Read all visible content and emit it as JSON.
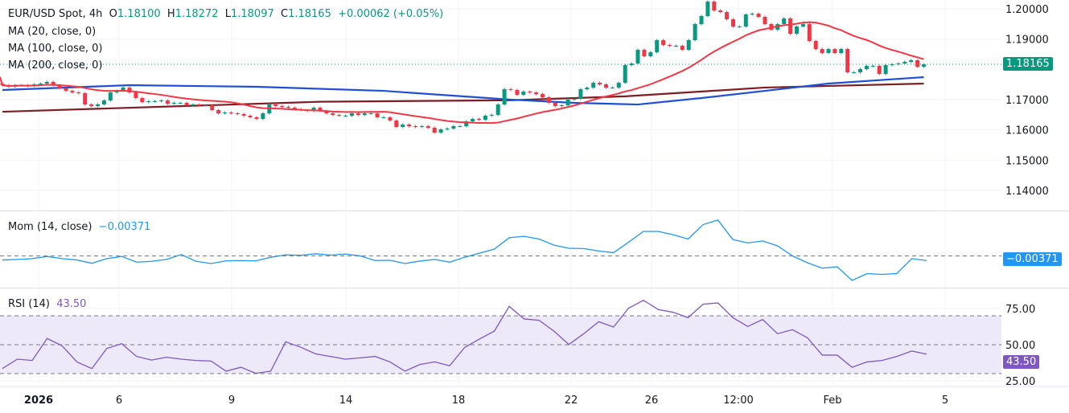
{
  "header": {
    "symbol": "EUR/USD Spot, 4h",
    "o_label": "O",
    "o": "1.18100",
    "h_label": "H",
    "h": "1.18272",
    "l_label": "L",
    "l": "1.18097",
    "c_label": "C",
    "c": "1.18165",
    "change": "+0.00062 (+0.05%)"
  },
  "indicators": {
    "ma20": "MA (20, close, 0)",
    "ma100": "MA (100, close, 0)",
    "ma200": "MA (200, close, 0)",
    "mom_title": "Mom (14, close)",
    "mom_value": "−0.00371",
    "rsi_title": "RSI (14)",
    "rsi_value": "43.50"
  },
  "price_tag": "1.18165",
  "mom_tag": "−0.00371",
  "rsi_tag": "43.50",
  "colors": {
    "up": "#089981",
    "down": "#f23645",
    "ma20": "#f23645",
    "ma100": "#1e4fd6",
    "ma200": "#7f1d22",
    "mom": "#2196f3",
    "rsi": "#7e57c2",
    "rsi_band": "#ede9f8"
  },
  "chart_data": [
    {
      "type": "candlestick",
      "title": "EUR/USD Spot, 4h",
      "ylim": [
        1.1325,
        1.2029
      ],
      "y_ticks": [
        "1.20000",
        "1.19000",
        "1.17000",
        "1.16000",
        "1.15000",
        "1.14000"
      ],
      "x_ticks": [
        "2026",
        "6",
        "9",
        "14",
        "18",
        "22",
        "26",
        "12:00",
        "Feb",
        "5"
      ],
      "grid": true,
      "closes": [
        1.17478,
        1.17425,
        1.17478,
        1.17478,
        1.17451,
        1.17504,
        1.17531,
        1.17584,
        1.17478,
        1.17372,
        1.17292,
        1.17239,
        1.17212,
        1.16841,
        1.16787,
        1.16841,
        1.16973,
        1.17239,
        1.17292,
        1.17398,
        1.17239,
        1.17053,
        1.1692,
        1.16947,
        1.16947,
        1.16973,
        1.16867,
        1.16894,
        1.16894,
        1.16814,
        1.16841,
        1.16814,
        1.16814,
        1.16655,
        1.16548,
        1.16575,
        1.16548,
        1.16522,
        1.16469,
        1.16416,
        1.16363,
        1.16548,
        1.16841,
        1.16787,
        1.16761,
        1.16734,
        1.16681,
        1.16655,
        1.16628,
        1.16734,
        1.16628,
        1.16548,
        1.16495,
        1.16469,
        1.16469,
        1.16548,
        1.16495,
        1.16548,
        1.16548,
        1.16416,
        1.16416,
        1.1631,
        1.16097,
        1.16177,
        1.16124,
        1.16097,
        1.16124,
        1.16071,
        1.15911,
        1.16017,
        1.16044,
        1.16124,
        1.16124,
        1.16283,
        1.16363,
        1.16336,
        1.16469,
        1.16495,
        1.16841,
        1.17345,
        1.17318,
        1.17159,
        1.17265,
        1.17239,
        1.17186,
        1.1708,
        1.16894,
        1.16787,
        1.16814,
        1.17,
        1.17026,
        1.17345,
        1.17398,
        1.17557,
        1.17504,
        1.17398,
        1.17398,
        1.17557,
        1.18141,
        1.18195,
        1.18646,
        1.18434,
        1.18566,
        1.18965,
        1.18805,
        1.18779,
        1.18779,
        1.18646,
        1.18965,
        1.19496,
        1.19761,
        1.20239,
        1.19947,
        1.19894,
        1.19655,
        1.19416,
        1.19416,
        1.19814,
        1.19841,
        1.19734,
        1.19496,
        1.1931,
        1.19496,
        1.19681,
        1.19177,
        1.19416,
        1.19496,
        1.18938,
        1.18672,
        1.1854,
        1.18672,
        1.1854,
        1.18672,
        1.17903,
        1.17903,
        1.18009,
        1.18115,
        1.18115,
        1.17849,
        1.18141,
        1.18168,
        1.18195,
        1.18248,
        1.18301,
        1.18088,
        1.18165
      ],
      "ma100": [
        [
          0,
          1.17318
        ],
        [
          20,
          1.17478
        ],
        [
          40,
          1.17425
        ],
        [
          60,
          1.1729
        ],
        [
          80,
          1.17
        ],
        [
          90,
          1.16894
        ],
        [
          100,
          1.1684
        ],
        [
          110,
          1.17053
        ],
        [
          120,
          1.1729
        ],
        [
          130,
          1.17531
        ],
        [
          145,
          1.17743
        ]
      ],
      "ma200": [
        [
          0,
          1.166
        ],
        [
          50,
          1.1693
        ],
        [
          80,
          1.1698
        ],
        [
          98,
          1.1711
        ],
        [
          120,
          1.174
        ],
        [
          145,
          1.1753
        ]
      ],
      "last_price": 1.18165
    },
    {
      "type": "line",
      "title": "Mom (14, close)",
      "zero_line": 0,
      "values": [
        -0.00327,
        -0.00283,
        -0.00218,
        -0.00044,
        -0.00218,
        -0.00327,
        -0.00589,
        -0.00218,
        -0.00044,
        -0.00501,
        -0.00436,
        -0.00283,
        0.00109,
        -0.00436,
        -0.0061,
        -0.00392,
        -0.00371,
        -0.00392,
        -0.00109,
        0.00087,
        0.00044,
        0.00174,
        0.00065,
        0.00153,
        0,
        -0.00371,
        -0.00349,
        -0.0061,
        -0.00414,
        -0.00283,
        -0.00501,
        -0.00109,
        0.00218,
        0.00545,
        0.01461,
        0.0157,
        0.01352,
        0.00872,
        0.0061,
        0.00589,
        0.00392,
        0.00262,
        0.0109,
        0.01962,
        0.01962,
        0.017,
        0.01352,
        0.02507,
        0.02878,
        0.01308,
        0.01046,
        0.01199,
        0.00807,
        0,
        -0.00545,
        -0.00981,
        -0.00872,
        -0.01962,
        -0.01417,
        -0.01483,
        -0.01417,
        -0.00218,
        -0.00371
      ]
    },
    {
      "type": "line",
      "title": "RSI (14)",
      "y_ticks": [
        "75.00",
        "50.00",
        "25.00"
      ],
      "band": [
        30,
        70
      ],
      "middle": 50,
      "values": [
        33.5,
        40.0,
        39.1,
        54.3,
        49.3,
        38.1,
        33.5,
        47.4,
        50.7,
        41.9,
        39.4,
        41.3,
        40.0,
        39.1,
        38.7,
        31.7,
        34.4,
        30.2,
        31.7,
        52.0,
        48.3,
        43.7,
        41.9,
        40.0,
        40.9,
        41.9,
        38.1,
        31.7,
        36.3,
        38.1,
        35.4,
        48.0,
        53.9,
        59.4,
        76.5,
        67.8,
        66.9,
        59.4,
        50.2,
        57.6,
        65.9,
        62.2,
        75.2,
        80.7,
        74.3,
        72.4,
        68.7,
        78.0,
        78.9,
        68.7,
        62.6,
        67.4,
        57.6,
        60.4,
        54.8,
        42.8,
        42.8,
        34.4,
        38.1,
        39.1,
        41.9,
        45.6,
        43.5
      ]
    }
  ]
}
